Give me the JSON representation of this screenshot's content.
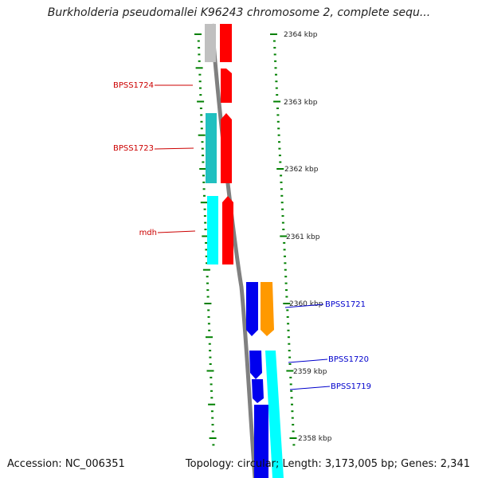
{
  "title": "Burkholderia pseudomallei K96243 chromosome 2, complete sequ...",
  "accession": "Accession: NC_006351",
  "summary": "Topology: circular; Length: 3,173,005 bp; Genes: 2,341",
  "scale_labels": [
    "2364 kbp",
    "2363 kbp",
    "2362 kbp",
    "2361 kbp",
    "2360 kbp",
    "2359 kbp",
    "2358 kbp"
  ],
  "gene_labels": [
    "BPSS1724",
    "BPSS1723",
    "mdh",
    "BPSS1721",
    "BPSS1720",
    "BPSS1719"
  ],
  "colors": {
    "red": "#ff0000",
    "grey": "#c0c0c0",
    "teal": "#20c0c0",
    "cyan": "#00ffff",
    "blue": "#0000ee",
    "orange": "#ff9900",
    "tick": "#008000",
    "backbone": "#808080",
    "left_label": "#cc0000",
    "right_label": "#0000cc"
  }
}
